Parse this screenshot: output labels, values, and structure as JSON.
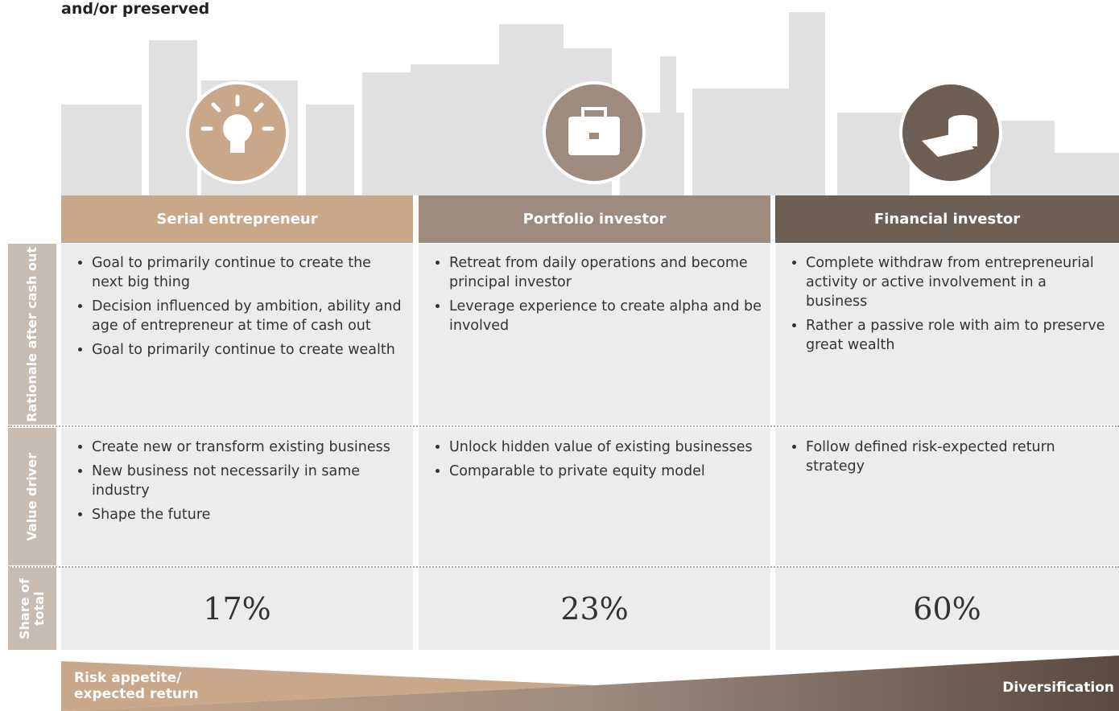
{
  "header": {
    "title": "and/or preserved"
  },
  "columns": [
    {
      "title": "Serial entrepreneur",
      "color": "#c8a78a"
    },
    {
      "title": "Portfolio investor",
      "color": "#9e8b7e"
    },
    {
      "title": "Financial investor",
      "color": "#6e5f55"
    }
  ],
  "rows": [
    {
      "label": "Rationale after cash out",
      "cells": [
        [
          "Goal to primarily continue to create the next big thing",
          "Decision influenced by ambition, ability and age of entrepreneur at time of cash out",
          "Goal to primarily continue to create wealth"
        ],
        [
          "Retreat from daily operations and become principal investor",
          "Leverage experience to create alpha and be involved"
        ],
        [
          "Complete withdraw from entrepreneurial activity or active involvement in a business",
          "Rather a passive role with aim to preserve great wealth"
        ]
      ]
    },
    {
      "label": "Value driver",
      "cells": [
        [
          "Create new or transform existing business",
          "New business not necessarily in same industry",
          "Shape the future"
        ],
        [
          "Unlock hidden value of existing businesses",
          "Comparable to private equity model"
        ],
        [
          "Follow defined risk-expected return strategy"
        ]
      ]
    }
  ],
  "share": {
    "label": "Share of total",
    "values": [
      "17%",
      "23%",
      "60%"
    ]
  },
  "footer": {
    "left": "Risk appetite/ expected return",
    "right": "Diversification"
  }
}
